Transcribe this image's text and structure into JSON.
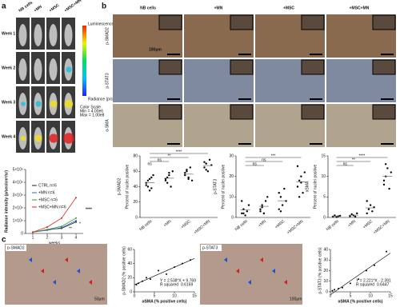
{
  "panel_a": {
    "label": "a",
    "groups": [
      "NB cells",
      "+MN",
      "+MSC",
      "+MSC+MN"
    ],
    "group_colors": [
      "#d9822b",
      "#2a6ebb",
      "#3f8f3a",
      "#d6262b"
    ],
    "weeks": [
      "Week 1",
      "Week 2",
      "Week 3",
      "Week 4"
    ],
    "colorbar": {
      "title": "Luminescence",
      "unit": "Radiance (p/sec/cm²/sr)",
      "scale": "Color Scale",
      "min": "Min = 4.00e6",
      "max": "Max = 1.00e8"
    },
    "chart": {
      "ylabel": "Radiance intensity (p/sec/cm²/sr)",
      "xlabel": "weeks",
      "xlim": [
        0.5,
        4.5
      ],
      "xticks": [
        1,
        2,
        3,
        4
      ],
      "ylim": [
        0,
        5000000000
      ],
      "yticks": [
        0,
        {
          "value": 1000000000,
          "label": "1×10⁹"
        },
        {
          "value": 2000000000,
          "label": "2×10⁹"
        },
        {
          "value": 3000000000,
          "label": "3×10⁹"
        },
        {
          "value": 4000000000,
          "label": "4×10⁹"
        },
        {
          "value": 5000000000,
          "label": "5×10⁹"
        }
      ],
      "series": [
        {
          "name": "CTRL n=6",
          "color": "#222222",
          "values": [
            100000000,
            300000000,
            400000000,
            900000000
          ]
        },
        {
          "name": "+MN n=6",
          "color": "#2a6ebb",
          "values": [
            100000000,
            250000000,
            450000000,
            1000000000
          ]
        },
        {
          "name": "+MSC n=6",
          "color": "#3f8f3a",
          "values": [
            100000000,
            300000000,
            550000000,
            1200000000
          ]
        },
        {
          "name": "+MSC+MN n=6",
          "color": "#d6262b",
          "values": [
            100000000,
            500000000,
            1200000000,
            2800000000
          ]
        }
      ],
      "significance": [
        "****",
        "**",
        "*"
      ]
    }
  },
  "panel_b": {
    "label": "b",
    "scale_bar": "100μm",
    "groups": [
      "NB cells",
      "+MN",
      "+MSC",
      "+MSC+MN"
    ],
    "group_colors": [
      "#d9822b",
      "#2a6ebb",
      "#3f8f3a",
      "#d6262b"
    ],
    "rows": [
      "p-SMAD2",
      "p-STAT3",
      "α-SMA"
    ],
    "plots": [
      {
        "title": "p-SMAD2",
        "ylabel": "Percent of nuclei positive",
        "categories": [
          "NB cells",
          "+MN",
          "+MSC",
          "+MSC+MN"
        ],
        "ylim": [
          0,
          80
        ],
        "yticks": [
          0,
          20,
          40,
          60,
          80
        ],
        "significance": [
          "ns",
          "ns",
          "**",
          "****"
        ],
        "groups": [
          [
            45,
            40,
            50,
            38,
            55,
            42,
            48,
            35,
            52
          ],
          [
            50,
            45,
            55,
            40,
            60,
            48,
            52,
            58
          ],
          [
            55,
            60,
            50,
            65,
            48,
            58,
            62,
            52
          ],
          [
            65,
            70,
            60,
            75,
            68,
            72,
            62
          ]
        ]
      },
      {
        "title": "p-STAT3",
        "ylabel": "Percent of nuclei positive",
        "categories": [
          "NB cells",
          "+MN",
          "+MSC",
          "+MSC+MN"
        ],
        "ylim": [
          0,
          30
        ],
        "yticks": [
          0,
          10,
          20,
          30
        ],
        "significance": [
          "ns",
          "ns",
          "***"
        ],
        "groups": [
          [
            2,
            4,
            1,
            3,
            6,
            8,
            2
          ],
          [
            3,
            5,
            2,
            8,
            10,
            4,
            6
          ],
          [
            4,
            10,
            6,
            14,
            8,
            12,
            3
          ],
          [
            15,
            18,
            20,
            12,
            22,
            25,
            10,
            17
          ]
        ]
      },
      {
        "title": "αSMA",
        "ylabel": "Percent of nuclei positive",
        "categories": [
          "NB cells",
          "+MN",
          "+MSC",
          "+MSC+MN"
        ],
        "ylim": [
          0,
          15
        ],
        "yticks": [
          0,
          5,
          10,
          15
        ],
        "significance": [
          "ns",
          "**",
          "****"
        ],
        "groups": [
          [
            0.2,
            0.5,
            0.1,
            0.3,
            0.4
          ],
          [
            0.3,
            0.8,
            0.5,
            0.2,
            1
          ],
          [
            1,
            2,
            3,
            1.5,
            2.5,
            4
          ],
          [
            8,
            10,
            12,
            7,
            11,
            9,
            13
          ]
        ]
      }
    ]
  },
  "panel_c": {
    "label": "c",
    "items": [
      {
        "image_label": "p-SMAD2",
        "scale_bar": "50μm",
        "ylabel": "p-SMAD2 (% positive cells)",
        "xlabel": "αSMA (% positive cells)",
        "equation": "Y = 2.538*X + 9.769",
        "r_label": "R squared",
        "r_value": "0.6169",
        "xlim": [
          0,
          15
        ],
        "xticks": [
          0,
          5,
          10,
          15
        ],
        "ylim": [
          0,
          60
        ],
        "yticks": [
          0,
          20,
          40,
          60
        ],
        "x": [
          0.5,
          1,
          2,
          3,
          4,
          6,
          8,
          10,
          12,
          14
        ],
        "y": [
          10,
          12,
          15,
          20,
          18,
          30,
          25,
          35,
          40,
          45
        ]
      },
      {
        "image_label": "p-STAT3",
        "scale_bar": "100μm",
        "ylabel": "p-STAT3 (% positive cells)",
        "xlabel": "αSMA (% positive cells)",
        "equation": "Y = 2.221*X - 2.391",
        "r_label": "R squared",
        "r_value": "0.6447",
        "xlim": [
          0,
          15
        ],
        "xticks": [
          0,
          5,
          10,
          15
        ],
        "ylim": [
          0,
          40
        ],
        "yticks": [
          0,
          10,
          20,
          30,
          40
        ],
        "x": [
          0.5,
          1,
          2,
          3,
          5,
          7,
          9,
          11,
          14
        ],
        "y": [
          1,
          2,
          3,
          4,
          8,
          12,
          20,
          25,
          38
        ]
      }
    ]
  }
}
